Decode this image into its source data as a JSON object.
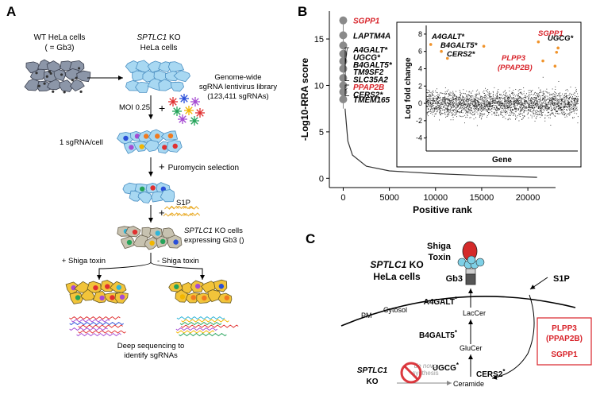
{
  "panel_a": {
    "label": "A",
    "wt_title_1": "WT HeLa cells",
    "wt_title_2": "( = Gb3)",
    "ko_title_1_it": "SPTLC1",
    "ko_title_1_rest": " KO",
    "ko_title_2": "HeLa cells",
    "library_1": "Genome-wide",
    "library_2": "sgRNA lentivirus library",
    "library_3": "(123,411 sgRNAs)",
    "moi": "MOI 0.25",
    "plus": "+",
    "per_cell": "1 sgRNA/cell",
    "puromycin": "Puromycin selection",
    "s1p": "S1P",
    "expressing_1_it": "SPTLC1",
    "expressing_1_rest": " KO cells",
    "expressing_2": "expressing Gb3 ()",
    "plus_shiga": "+ Shiga toxin",
    "minus_shiga": "- Shiga toxin",
    "deep_1": "Deep sequencing to",
    "deep_2": "identify sgRNAs"
  },
  "panel_b": {
    "label": "B",
    "inset_xlabel": "Gene",
    "inset_ylabel": "Log fold change",
    "highlight_color": "#f0932b",
    "red_color": "#d8232a"
  },
  "chart_data": [
    {
      "type": "scatter",
      "xlabel": "Positive rank",
      "ylabel": "-Log10-RRA score",
      "xticks": [
        0,
        5000,
        10000,
        15000,
        20000
      ],
      "yticks": [
        0,
        5,
        10,
        15
      ],
      "xlim": [
        -1500,
        23000
      ],
      "ylim": [
        -1,
        18
      ],
      "highlighted_points": [
        {
          "rank": 1,
          "score": 17.0,
          "gene": "SGPP1",
          "color": "red"
        },
        {
          "rank": 2,
          "score": 15.4,
          "gene": "LAPTM4A",
          "color": "black"
        },
        {
          "rank": 3,
          "score": 14.3,
          "gene": "A4GALT*",
          "color": "black"
        },
        {
          "rank": 4,
          "score": 13.4,
          "gene": "UGCG*",
          "color": "black"
        },
        {
          "rank": 5,
          "score": 12.6,
          "gene": "B4GALT5*",
          "color": "black"
        },
        {
          "rank": 6,
          "score": 11.8,
          "gene": "TM9SF2",
          "color": "black"
        },
        {
          "rank": 7,
          "score": 10.8,
          "gene": "SLC35A2",
          "color": "black"
        },
        {
          "rank": 8,
          "score": 10.0,
          "gene": "PPAP2B",
          "color": "red"
        },
        {
          "rank": 9,
          "score": 9.3,
          "gene": "CERS2*",
          "color": "black"
        },
        {
          "rank": 10,
          "score": 8.5,
          "gene": "TMEM165",
          "color": "black"
        }
      ],
      "curve": [
        [
          200,
          7.5
        ],
        [
          500,
          4.0
        ],
        [
          1000,
          2.5
        ],
        [
          2500,
          1.3
        ],
        [
          5000,
          0.8
        ],
        [
          10000,
          0.5
        ],
        [
          15000,
          0.3
        ],
        [
          21000,
          0.1
        ]
      ]
    },
    {
      "type": "scatter",
      "xlabel": "Gene",
      "ylabel": "Log fold change",
      "yticks": [
        -4,
        -2,
        0,
        2,
        4,
        6,
        8
      ],
      "ylim": [
        -5.5,
        9
      ],
      "labels": [
        {
          "gene": "A4GALT*",
          "lfc": 6.7,
          "color": "black"
        },
        {
          "gene": "B4GALT5*",
          "lfc": 5.9,
          "color": "black"
        },
        {
          "gene": "CERS2*",
          "lfc": 5.2,
          "color": "black"
        },
        {
          "gene": "SGPP1",
          "lfc": 7.2,
          "color": "red"
        },
        {
          "gene": "UGCG*",
          "lfc": 7.0,
          "color": "black"
        },
        {
          "gene": "PLPP3",
          "lfc": 4.3,
          "color": "red"
        },
        {
          "gene": "(PPAP2B)",
          "lfc": 4.3,
          "color": "red"
        }
      ],
      "highlighted_points": [
        {
          "gene_index": 0.03,
          "lfc": 6.8
        },
        {
          "gene_index": 0.1,
          "lfc": 6.0
        },
        {
          "gene_index": 0.14,
          "lfc": 5.2
        },
        {
          "gene_index": 0.38,
          "lfc": 6.6
        },
        {
          "gene_index": 0.74,
          "lfc": 7.1
        },
        {
          "gene_index": 0.77,
          "lfc": 4.9
        },
        {
          "gene_index": 0.85,
          "lfc": 4.3
        },
        {
          "gene_index": 0.86,
          "lfc": 5.9
        },
        {
          "gene_index": 0.87,
          "lfc": 6.4
        }
      ]
    }
  ],
  "panel_c": {
    "label": "C",
    "title_it": "SPTLC1",
    "title_rest": " KO",
    "title_2": "HeLa cells",
    "shiga_1": "Shiga",
    "shiga_2": "Toxin",
    "gb3": "Gb3",
    "s1p": "S1P",
    "pm": "PM",
    "cytosol": "Cytosol",
    "a4galt": "A4GALT",
    "laccer": "LacCer",
    "b4galt5": "B4GALT5",
    "glucer": "GluCer",
    "ugcg": "UGCG",
    "sptlc1_it": "SPTLC1",
    "ko": "KO",
    "de_novo_1": "de novo",
    "de_novo_2": "synthesis",
    "ceramide": "Ceramide",
    "cers2": "CERS2",
    "box_1": "PLPP3",
    "box_2": "(PPAP2B)",
    "box_3": "SGPP1",
    "asterisk": "*"
  }
}
